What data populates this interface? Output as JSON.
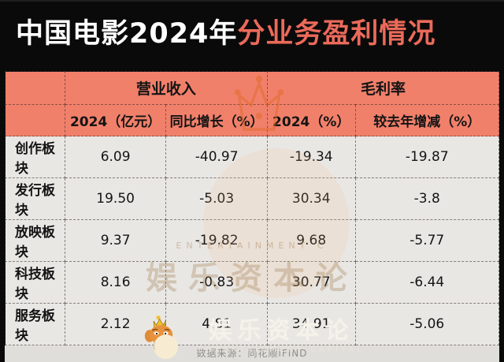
{
  "title": {
    "white": "中国电影2024年",
    "red": "分业务盈利情况"
  },
  "table": {
    "group_headers": [
      "营业收入",
      "毛利率"
    ],
    "col_headers": [
      "2024（亿元）",
      "同比增长（%）",
      "2024（%）",
      "较去年增减（%）"
    ],
    "rows": [
      {
        "label": "创作板块",
        "values": [
          "6.09",
          "-40.97",
          "-19.34",
          "-19.87"
        ]
      },
      {
        "label": "发行板块",
        "values": [
          "19.50",
          "-5.03",
          "30.34",
          "-3.8"
        ]
      },
      {
        "label": "放映板块",
        "values": [
          "9.37",
          "-19.82",
          "9.68",
          "-5.77"
        ]
      },
      {
        "label": "科技板块",
        "values": [
          "8.16",
          "-0.83",
          "30.77",
          "-6.44"
        ]
      },
      {
        "label": "服务板块",
        "values": [
          "2.12",
          "4.81",
          "34.91",
          "-5.06"
        ]
      }
    ]
  },
  "source_note": "数据来源：同花顺iFIND",
  "watermark": {
    "cn": "娱乐资本论",
    "en": "ENTERTAINMENT C"
  },
  "logo": {
    "cn": "娱乐资本论",
    "en": "ENTERTAINMENT CAPITAL"
  },
  "colors": {
    "canvas_bg": "#0a0a0a",
    "header_bg": "#f1806a",
    "title_accent": "#eb6a5a",
    "body_cell_bg": "#e9e7e4",
    "source_strip_bg": "#e0deda",
    "crown_gold": "#f2c12e",
    "mascot_orange": "#e8923e"
  },
  "chart_data": {
    "type": "table",
    "title": "中国电影2024年分业务盈利情况",
    "column_groups": [
      {
        "label": "营业收入",
        "columns": [
          "2024（亿元）",
          "同比增长（%）"
        ]
      },
      {
        "label": "毛利率",
        "columns": [
          "2024（%）",
          "较去年增减（%）"
        ]
      }
    ],
    "columns": [
      "板块",
      "营业收入2024（亿元）",
      "营业收入同比增长（%）",
      "毛利率2024（%）",
      "毛利率较去年增减（%）"
    ],
    "rows": [
      [
        "创作板块",
        6.09,
        -40.97,
        -19.34,
        -19.87
      ],
      [
        "发行板块",
        19.5,
        -5.03,
        30.34,
        -3.8
      ],
      [
        "放映板块",
        9.37,
        -19.82,
        9.68,
        -5.77
      ],
      [
        "科技板块",
        8.16,
        -0.83,
        30.77,
        -6.44
      ],
      [
        "服务板块",
        2.12,
        4.81,
        34.91,
        -5.06
      ]
    ],
    "source": "数据来源：同花顺iFIND"
  }
}
